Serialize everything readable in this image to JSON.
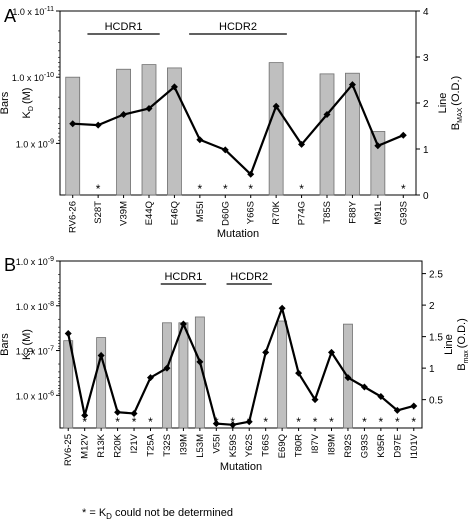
{
  "footnote": "* = K",
  "footnote_sub": "D",
  "footnote_tail": " could not be determined",
  "chart_data": [
    {
      "panel": "A",
      "type": "bar",
      "xlabel": "Mutation",
      "ylabel_left": "Bars",
      "ylabel_left_main": "K",
      "ylabel_left_sub": "D",
      "ylabel_left_unit": "(M)",
      "ylabel_right_line": "Line",
      "ylabel_right_main": "B",
      "ylabel_right_sub": "MAX",
      "ylabel_right_unit": "(O.D.)",
      "left_scale": "log-inverted",
      "left_ticks": [
        {
          "base": "1.0 x 10",
          "exp": "-11"
        },
        {
          "base": "1.0 x 10",
          "exp": "-10"
        },
        {
          "base": "1.0 x 10",
          "exp": "-9"
        }
      ],
      "left_range_log": [
        -11,
        -8.22
      ],
      "right_ticks": [
        0,
        1,
        2,
        3,
        4
      ],
      "right_range": [
        0,
        4
      ],
      "regions": [
        {
          "label": "HCDR1",
          "from": 1,
          "to": 3
        },
        {
          "label": "HCDR2",
          "from": 5,
          "to": 8
        }
      ],
      "categories": [
        "RV6-26",
        "S28T",
        "V39M",
        "E44Q",
        "E46Q",
        "M55I",
        "D60G",
        "Y66S",
        "R70K",
        "P74G",
        "T85S",
        "F88Y",
        "M91L",
        "G93S"
      ],
      "bar_kd_log": [
        -10.0,
        null,
        -10.12,
        -10.19,
        -10.14,
        null,
        null,
        null,
        -10.22,
        null,
        -10.05,
        -10.06,
        -9.18,
        null
      ],
      "undetermined": [
        false,
        true,
        false,
        false,
        false,
        true,
        true,
        true,
        false,
        true,
        false,
        false,
        false,
        true
      ],
      "line_bmax": [
        1.55,
        1.52,
        1.75,
        1.88,
        2.35,
        1.2,
        0.98,
        0.45,
        1.93,
        1.1,
        1.75,
        2.4,
        1.07,
        1.3
      ]
    },
    {
      "panel": "B",
      "type": "bar",
      "xlabel": "Mutation",
      "ylabel_left": "Bars",
      "ylabel_left_main": "K",
      "ylabel_left_sub": "D",
      "ylabel_left_unit": "(M)",
      "ylabel_right_line": "Line",
      "ylabel_right_main": "B",
      "ylabel_right_sub": "max",
      "ylabel_right_unit": "(O.D.)",
      "left_scale": "log-inverted",
      "left_ticks": [
        {
          "base": "1.0 x 10",
          "exp": "-9"
        },
        {
          "base": "1.0 x 10",
          "exp": "-8"
        },
        {
          "base": "1.0 x 10",
          "exp": "-7"
        },
        {
          "base": "1.0 x 10",
          "exp": "-6"
        }
      ],
      "left_range_log": [
        -9,
        -5.27
      ],
      "right_ticks": [
        0.5,
        1,
        1.5,
        2,
        2.5
      ],
      "right_range": [
        0.05,
        2.7
      ],
      "regions": [
        {
          "label": "HCDR1",
          "from": 6,
          "to": 8
        },
        {
          "label": "HCDR2",
          "from": 10,
          "to": 12
        }
      ],
      "categories": [
        "RV6-25",
        "M12V",
        "R13K",
        "R20K",
        "I21V",
        "T25A",
        "T32S",
        "I39M",
        "L53M",
        "V55I",
        "K59S",
        "Y62S",
        "T66S",
        "E69Q",
        "T80R",
        "I87V",
        "I89M",
        "R92S",
        "G93S",
        "K95R",
        "D97E",
        "I101V"
      ],
      "bar_kd_log": [
        -7.22,
        null,
        -7.29,
        null,
        null,
        null,
        -7.62,
        -7.62,
        -7.75,
        null,
        null,
        null,
        null,
        -7.66,
        null,
        null,
        null,
        -7.59,
        null,
        null,
        null,
        null
      ],
      "undetermined": [
        false,
        true,
        false,
        true,
        true,
        true,
        false,
        false,
        false,
        true,
        true,
        true,
        true,
        false,
        true,
        true,
        true,
        false,
        true,
        true,
        true,
        true
      ],
      "line_bmax": [
        1.55,
        0.25,
        1.2,
        0.3,
        0.28,
        0.85,
        1.0,
        1.7,
        1.1,
        0.12,
        0.1,
        0.15,
        1.25,
        1.95,
        0.92,
        0.5,
        1.25,
        0.85,
        0.7,
        0.55,
        0.33,
        0.4
      ]
    }
  ]
}
